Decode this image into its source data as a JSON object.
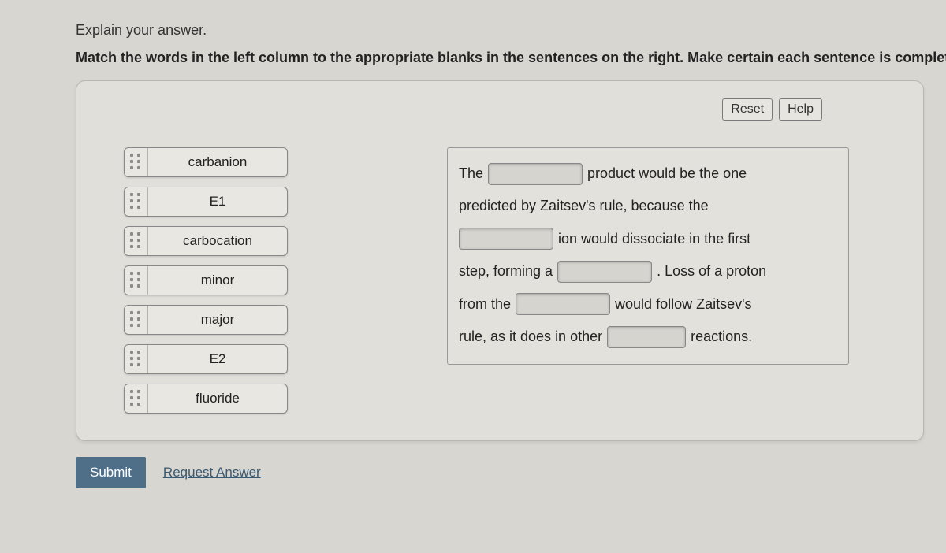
{
  "headings": {
    "line1": "Explain your answer.",
    "line2": "Match the words in the left column to the appropriate blanks in the sentences on the right. Make certain each sentence is complet"
  },
  "topButtons": {
    "reset": "Reset",
    "help": "Help"
  },
  "draggables": [
    "carbanion",
    "E1",
    "carbocation",
    "minor",
    "major",
    "E2",
    "fluoride"
  ],
  "sentence": {
    "l1a": "The",
    "l1b": "product would be the one",
    "l2": "predicted by Zaitsev's rule, because the",
    "l3": "ion would dissociate in the first",
    "l4a": "step, forming a",
    "l4b": ". Loss of a proton",
    "l5a": "from the",
    "l5b": "would follow Zaitsev's",
    "l6a": "rule, as it does in other",
    "l6b": "reactions."
  },
  "footer": {
    "submit": "Submit",
    "request": "Request Answer"
  },
  "colors": {
    "page_bg": "#d8d6d1",
    "panel_bg": "#e1dfda",
    "panel_border": "#b8b6b1",
    "drag_bg": "#e9e7e2",
    "blank_bg": "#d6d4cf",
    "submit_bg": "#4f6f88",
    "link_color": "#3a5a73"
  }
}
